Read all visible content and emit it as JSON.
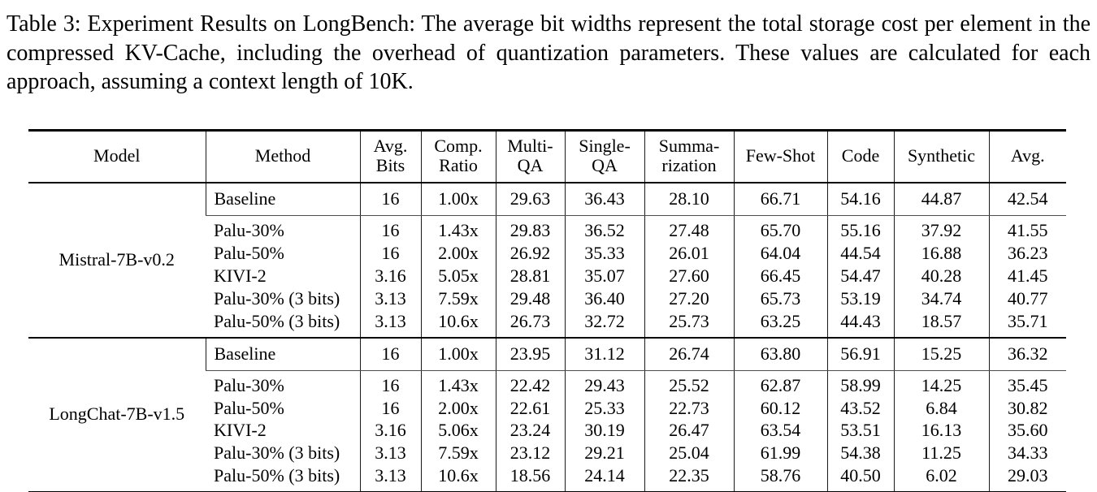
{
  "page": {
    "background": "#ffffff",
    "text_color": "#000000",
    "rule_color": "#000000"
  },
  "caption": "Table 3: Experiment Results on LongBench: The average bit widths represent the total storage cost per element in the compressed KV-Cache, including the overhead of quantization parameters. These values are calculated for each approach, assuming a context length of 10K.",
  "table": {
    "columns": [
      {
        "id": "model",
        "label": "Model"
      },
      {
        "id": "method",
        "label": "Method"
      },
      {
        "id": "avg-bits",
        "label": "Avg.\nBits"
      },
      {
        "id": "comp-ratio",
        "label": "Comp.\nRatio"
      },
      {
        "id": "multi-qa",
        "label": "Multi-\nQA"
      },
      {
        "id": "single-qa",
        "label": "Single-\nQA"
      },
      {
        "id": "summarization",
        "label": "Summa-\nrization"
      },
      {
        "id": "few-shot",
        "label": "Few-Shot"
      },
      {
        "id": "code",
        "label": "Code"
      },
      {
        "id": "synthetic",
        "label": "Synthetic"
      },
      {
        "id": "avg",
        "label": "Avg."
      }
    ],
    "sections": [
      {
        "model": "Mistral-7B-v0.2",
        "baseline": {
          "method": "Baseline",
          "values": [
            "16",
            "1.00x",
            "29.63",
            "36.43",
            "28.10",
            "66.71",
            "54.16",
            "44.87",
            "42.54"
          ]
        },
        "rows": [
          {
            "method": "Palu-30%",
            "values": [
              "16",
              "1.43x",
              "29.83",
              "36.52",
              "27.48",
              "65.70",
              "55.16",
              "37.92",
              "41.55"
            ]
          },
          {
            "method": "Palu-50%",
            "values": [
              "16",
              "2.00x",
              "26.92",
              "35.33",
              "26.01",
              "64.04",
              "44.54",
              "16.88",
              "36.23"
            ]
          },
          {
            "method": "KIVI-2",
            "values": [
              "3.16",
              "5.05x",
              "28.81",
              "35.07",
              "27.60",
              "66.45",
              "54.47",
              "40.28",
              "41.45"
            ]
          },
          {
            "method": "Palu-30% (3 bits)",
            "values": [
              "3.13",
              "7.59x",
              "29.48",
              "36.40",
              "27.20",
              "65.73",
              "53.19",
              "34.74",
              "40.77"
            ]
          },
          {
            "method": "Palu-50% (3 bits)",
            "values": [
              "3.13",
              "10.6x",
              "26.73",
              "32.72",
              "25.73",
              "63.25",
              "44.43",
              "18.57",
              "35.71"
            ]
          }
        ]
      },
      {
        "model": "LongChat-7B-v1.5",
        "baseline": {
          "method": "Baseline",
          "values": [
            "16",
            "1.00x",
            "23.95",
            "31.12",
            "26.74",
            "63.80",
            "56.91",
            "15.25",
            "36.32"
          ]
        },
        "rows": [
          {
            "method": "Palu-30%",
            "values": [
              "16",
              "1.43x",
              "22.42",
              "29.43",
              "25.52",
              "62.87",
              "58.99",
              "14.25",
              "35.45"
            ]
          },
          {
            "method": "Palu-50%",
            "values": [
              "16",
              "2.00x",
              "22.61",
              "25.33",
              "22.73",
              "60.12",
              "43.52",
              "6.84",
              "30.82"
            ]
          },
          {
            "method": "KIVI-2",
            "values": [
              "3.16",
              "5.06x",
              "23.24",
              "30.19",
              "26.47",
              "63.54",
              "53.51",
              "16.13",
              "35.60"
            ]
          },
          {
            "method": "Palu-30% (3 bits)",
            "values": [
              "3.13",
              "7.59x",
              "23.12",
              "29.21",
              "25.04",
              "61.99",
              "54.38",
              "11.25",
              "34.33"
            ]
          },
          {
            "method": "Palu-50% (3 bits)",
            "values": [
              "3.13",
              "10.6x",
              "18.56",
              "24.14",
              "22.35",
              "58.76",
              "40.50",
              "6.02",
              "29.03"
            ]
          }
        ]
      }
    ]
  }
}
